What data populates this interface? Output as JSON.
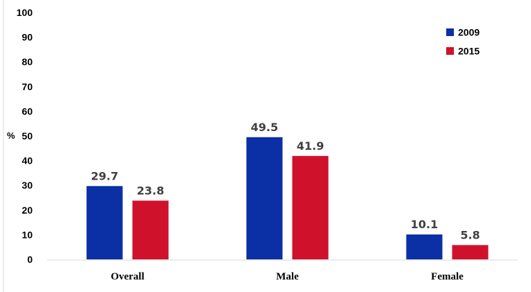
{
  "chart_data": {
    "type": "bar",
    "title": "",
    "xlabel": "",
    "ylabel": "%",
    "ylim": [
      0,
      100
    ],
    "yticks": [
      0,
      10,
      20,
      30,
      40,
      50,
      60,
      70,
      80,
      90,
      100
    ],
    "grid": false,
    "legend_position": "top-right",
    "categories": [
      "Overall",
      "Male",
      "Female"
    ],
    "series": [
      {
        "name": "2009",
        "color": "#0b2fa5",
        "values": [
          29.7,
          49.5,
          10.1
        ],
        "labels": [
          "29.7",
          "49.5",
          "10.1"
        ]
      },
      {
        "name": "2015",
        "color": "#d0112b",
        "values": [
          23.8,
          41.9,
          5.8
        ],
        "labels": [
          "23.8",
          "41.9",
          "5.8"
        ]
      }
    ]
  }
}
